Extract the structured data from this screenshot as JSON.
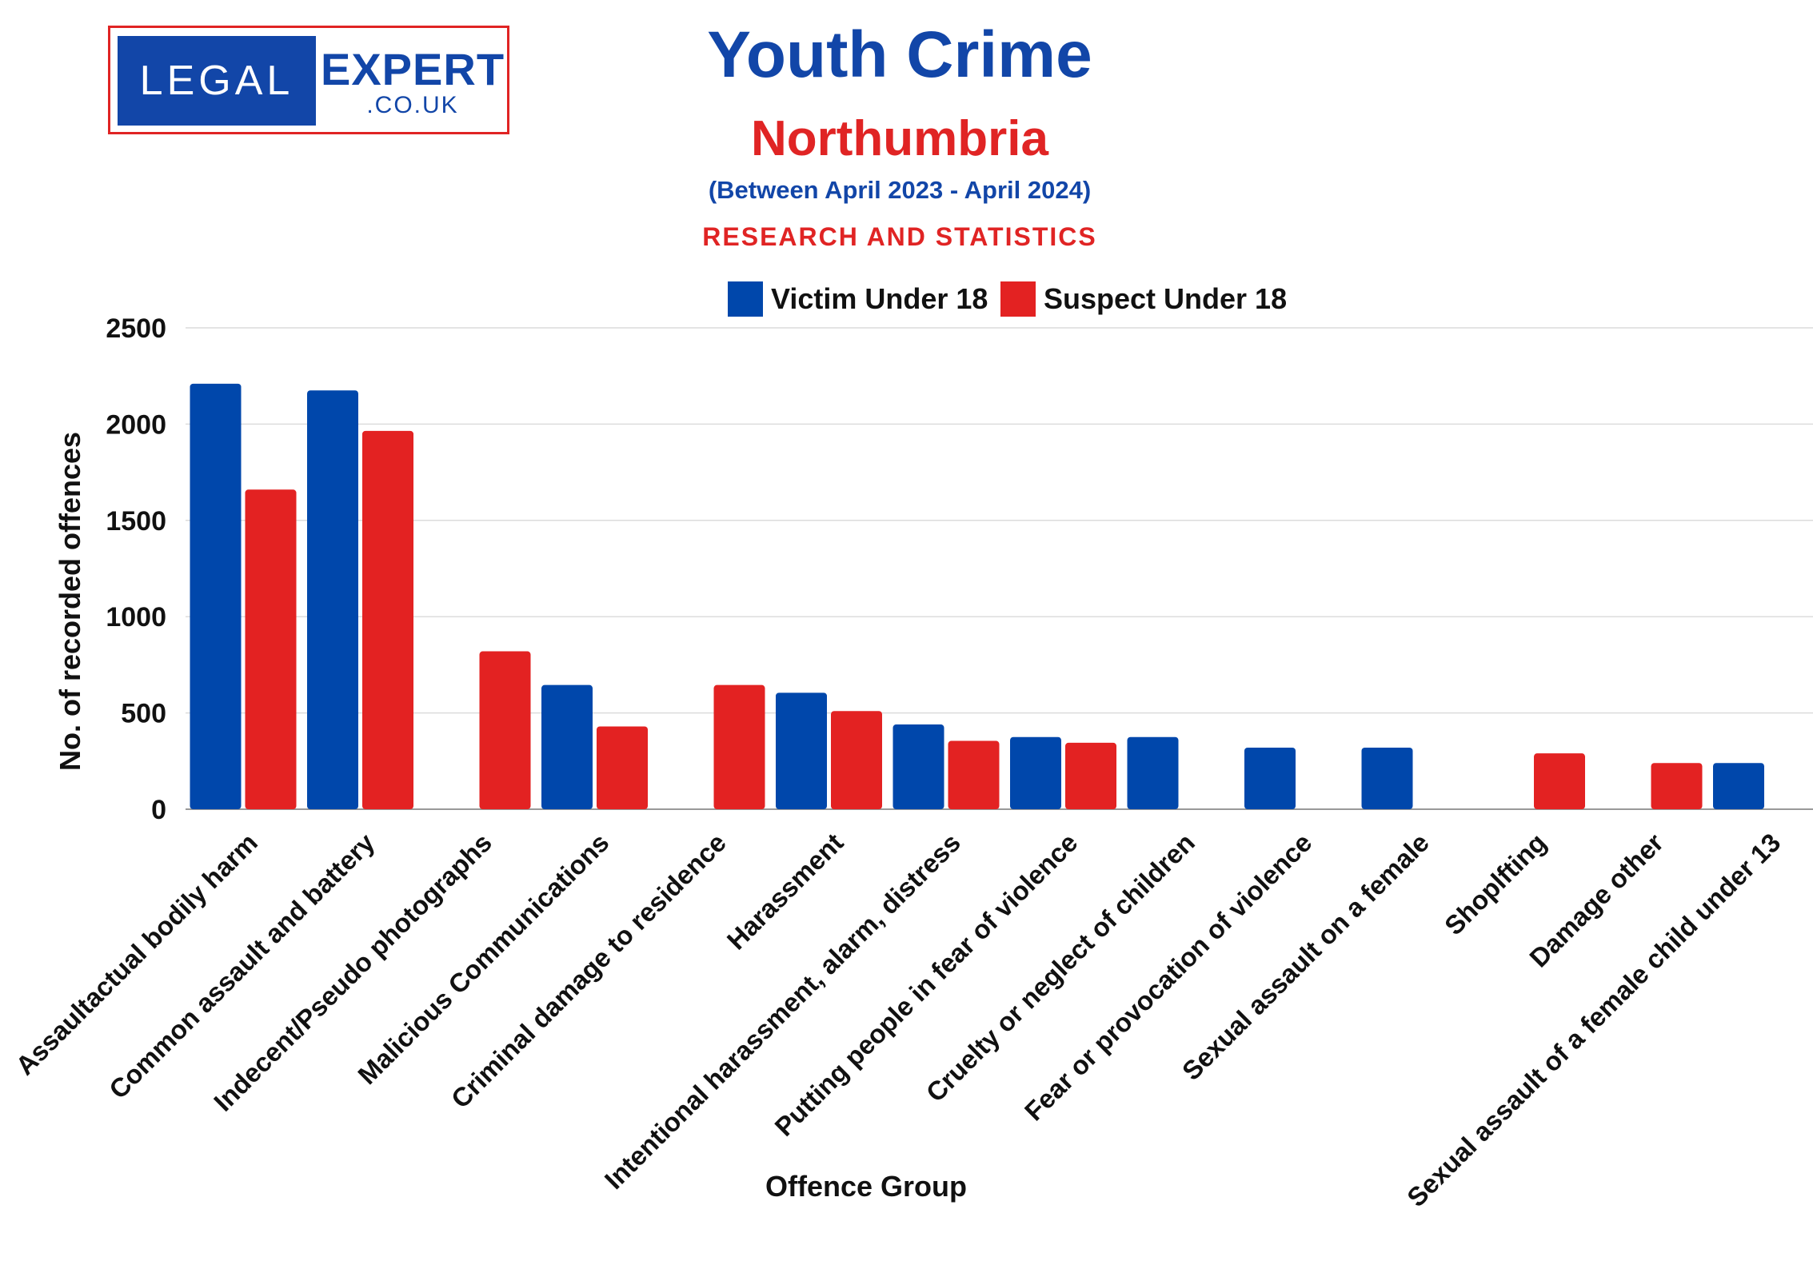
{
  "logo": {
    "left_text": "LEGAL",
    "right_text": "EXPERT",
    "sub_text": ".CO.UK"
  },
  "header": {
    "title": "Youth Crime",
    "region": "Northumbria",
    "period": "(Between April 2023 - April 2024)",
    "tag": "RESEARCH AND STATISTICS"
  },
  "chart_data": {
    "type": "bar",
    "xlabel": "Offence Group",
    "ylabel": "No. of recorded offences",
    "ylim": [
      0,
      2500
    ],
    "yticks": [
      0,
      500,
      1000,
      1500,
      2000,
      2500
    ],
    "grid": true,
    "legend": "top-center",
    "categories": [
      "Assaultactual bodily harm",
      "Common assault and battery",
      "Indecent/Pseudo photographs",
      "Malicious Communications",
      "Criminal damage to residence",
      "Harassment",
      "Intentional harassment, alarm, distress",
      "Putting people in fear of violence",
      "Cruelty or neglect of children",
      "Fear or provocation of violence",
      "Sexual assault on a female",
      "Shoplfting",
      "Damage other",
      "Sexual assault of a female child under 13"
    ],
    "series": [
      {
        "name": "Victim Under 18",
        "color": "#0047ab",
        "values": [
          2210,
          2175,
          null,
          645,
          null,
          605,
          440,
          375,
          375,
          320,
          320,
          null,
          null,
          240
        ]
      },
      {
        "name": "Suspect Under 18",
        "color": "#e32222",
        "values": [
          1660,
          1965,
          820,
          430,
          645,
          510,
          355,
          345,
          null,
          null,
          null,
          290,
          240,
          null
        ]
      }
    ]
  }
}
